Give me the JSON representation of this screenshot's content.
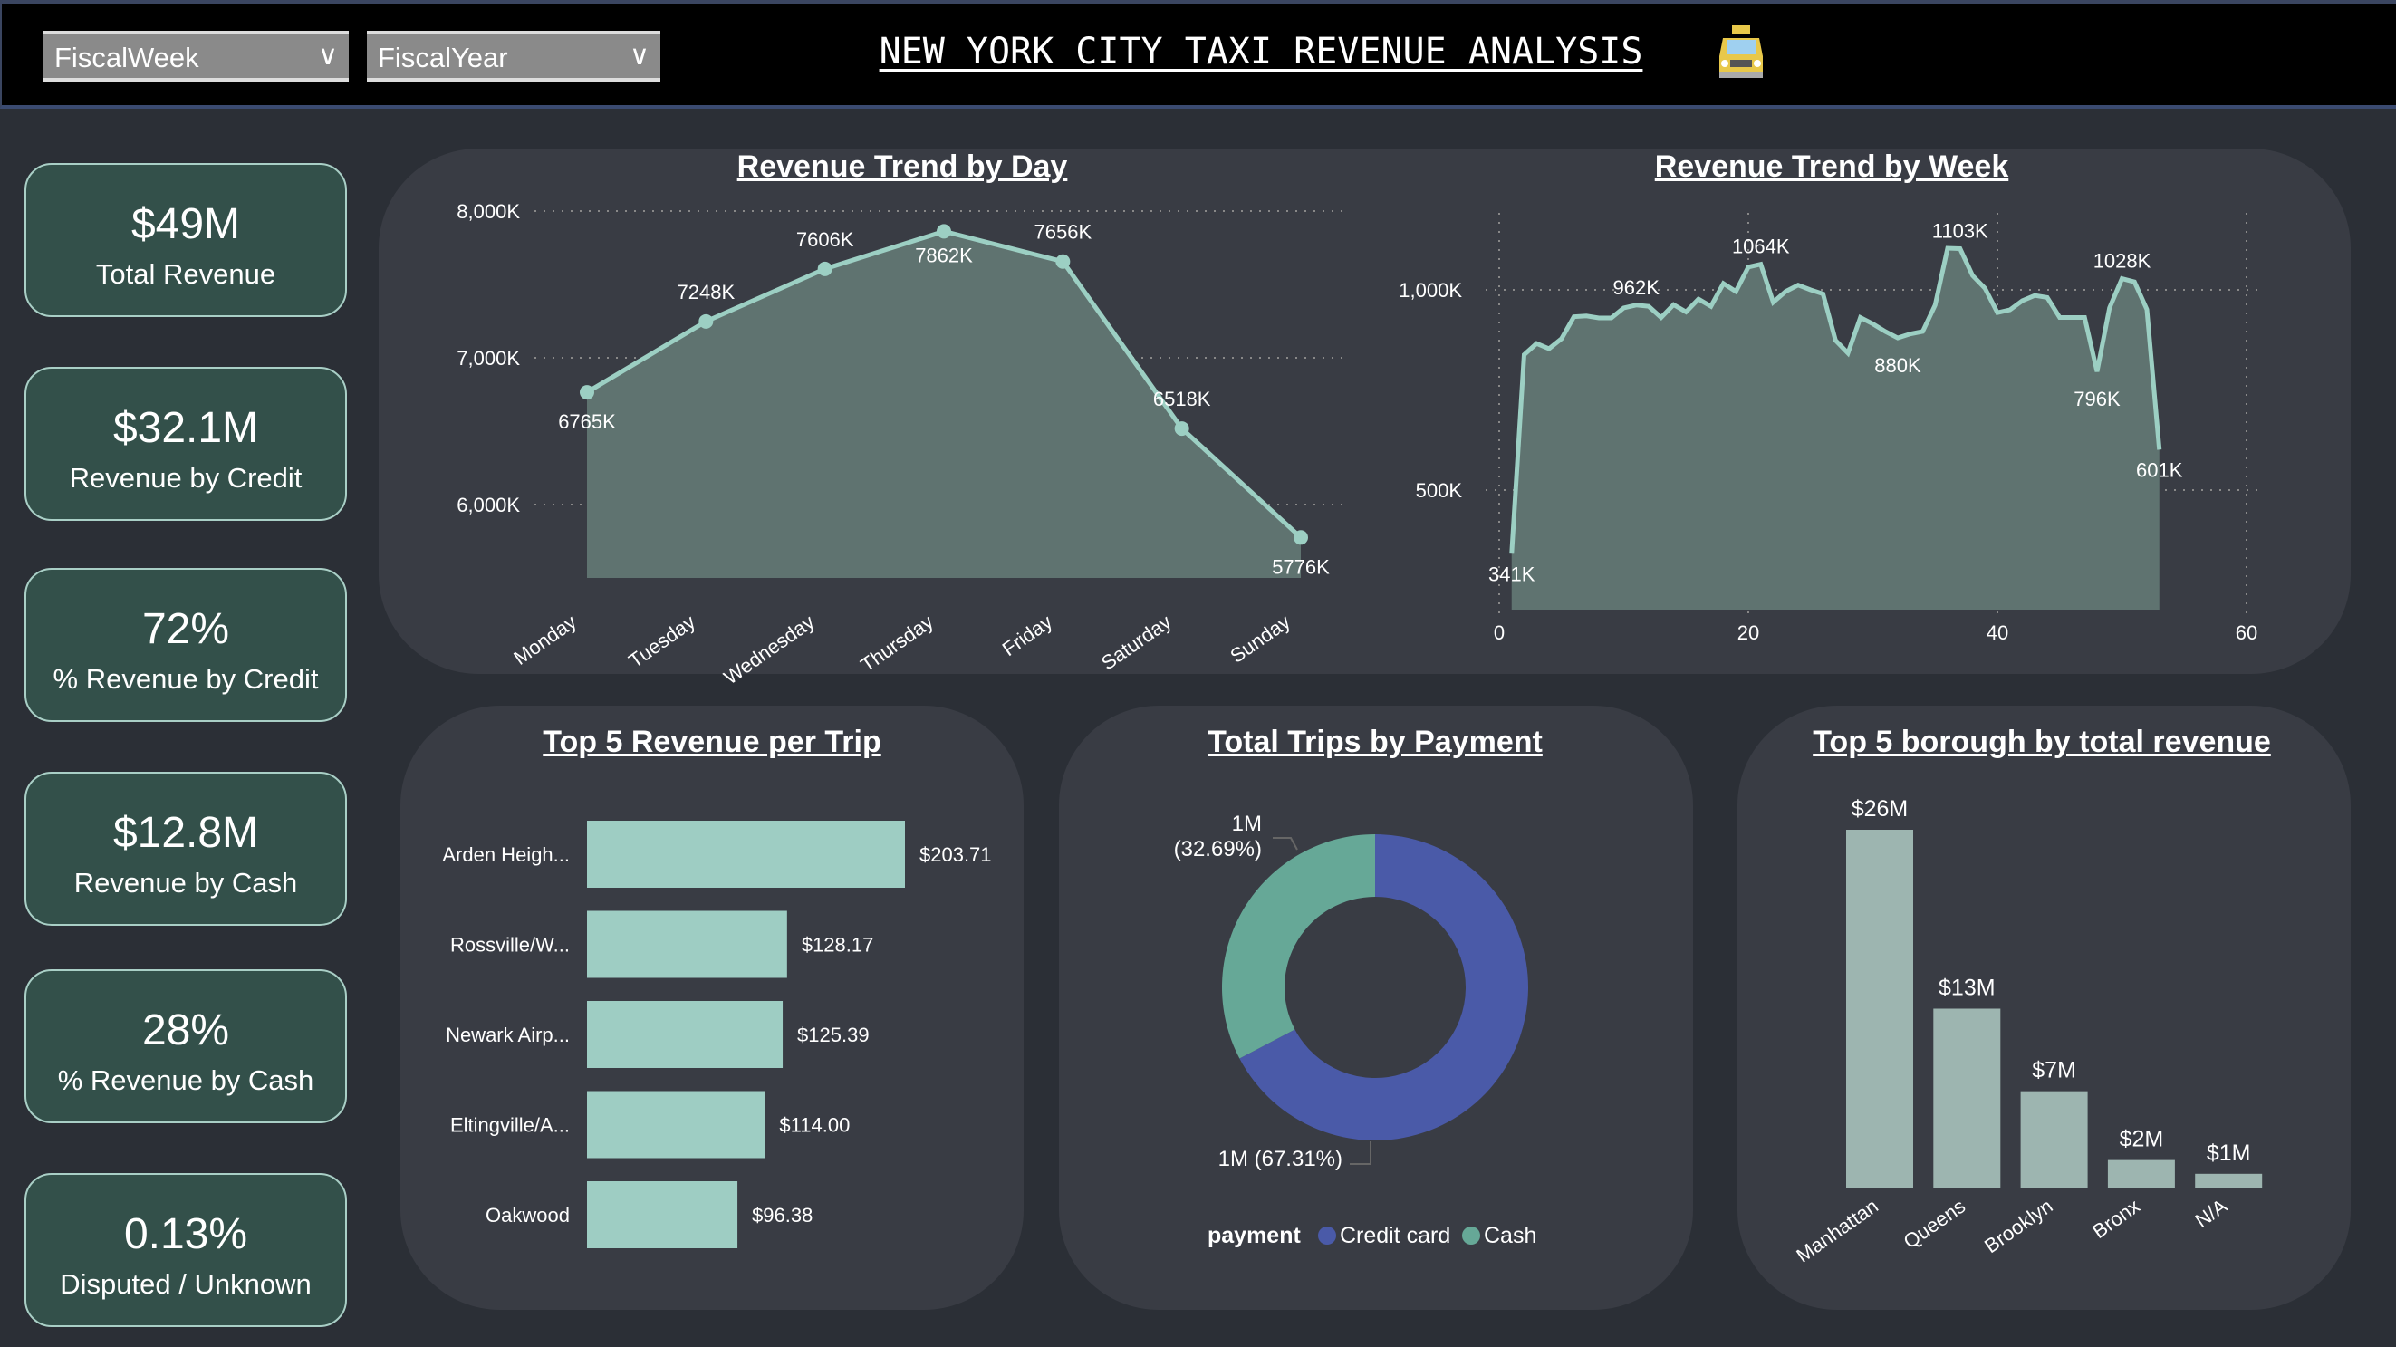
{
  "header": {
    "filters": [
      {
        "label": "FiscalWeek",
        "icon": "chevron-down-icon"
      },
      {
        "label": "FiscalYear",
        "icon": "chevron-down-icon"
      }
    ],
    "title": "NEW YORK CITY TAXI REVENUE ANALYSIS",
    "logo_text": "TAXI"
  },
  "kpis": [
    {
      "value": "$49M",
      "label": "Total Revenue"
    },
    {
      "value": "$32.1M",
      "label": "Revenue by Credit"
    },
    {
      "value": "72%",
      "label": "% Revenue by Credit"
    },
    {
      "value": "$12.8M",
      "label": "Revenue by Cash"
    },
    {
      "value": "28%",
      "label": "% Revenue by Cash"
    },
    {
      "value": "0.13%",
      "label": "Disputed / Unknown"
    }
  ],
  "colors": {
    "line": "#9ccfc3",
    "area": "#5f7370",
    "credit": "#4a5aa8",
    "cash": "#66a897",
    "bar": "#9ecdc3",
    "borough_bar": "#9db5b0",
    "kpi_bg": "#33504a"
  },
  "chart_data": [
    {
      "type": "area",
      "title": "Revenue Trend by Day",
      "categories": [
        "Monday",
        "Tuesday",
        "Wednesday",
        "Thursday",
        "Friday",
        "Saturday",
        "Sunday"
      ],
      "values": [
        6765,
        7248,
        7606,
        7862,
        7656,
        6518,
        5776
      ],
      "data_labels": [
        "6765K",
        "7248K",
        "7606K",
        "7862K",
        "7656K",
        "6518K",
        "5776K"
      ],
      "yticks": [
        "6,000K",
        "7,000K",
        "8,000K"
      ],
      "ytick_values": [
        6000,
        7000,
        8000
      ],
      "ylim": [
        5500,
        8000
      ],
      "unit": "K",
      "grid": true
    },
    {
      "type": "area",
      "title": "Revenue Trend by Week",
      "x": [
        1,
        2,
        3,
        4,
        5,
        6,
        7,
        8,
        9,
        10,
        11,
        12,
        13,
        14,
        15,
        16,
        17,
        18,
        19,
        20,
        21,
        22,
        23,
        24,
        25,
        26,
        27,
        28,
        29,
        30,
        31,
        32,
        33,
        34,
        35,
        36,
        37,
        38,
        39,
        40,
        41,
        42,
        43,
        44,
        45,
        46,
        47,
        48,
        49,
        50,
        51,
        52,
        53
      ],
      "values": [
        341,
        838,
        866,
        853,
        878,
        933,
        935,
        930,
        930,
        955,
        962,
        959,
        931,
        963,
        945,
        977,
        959,
        1016,
        996,
        1057,
        1064,
        969,
        996,
        1012,
        1000,
        990,
        874,
        842,
        931,
        915,
        896,
        880,
        890,
        896,
        962,
        1104,
        1103,
        1036,
        1004,
        943,
        950,
        973,
        986,
        981,
        931,
        931,
        931,
        796,
        955,
        1028,
        1020,
        951,
        601
      ],
      "data_labels": [
        {
          "x": 1,
          "text": "341K"
        },
        {
          "x": 11,
          "text": "962K"
        },
        {
          "x": 21,
          "text": "1064K"
        },
        {
          "x": 32,
          "text": "880K"
        },
        {
          "x": 37,
          "text": "1103K"
        },
        {
          "x": 48,
          "text": "796K"
        },
        {
          "x": 50,
          "text": "1028K"
        },
        {
          "x": 53,
          "text": "601K"
        }
      ],
      "xticks": [
        "0",
        "20",
        "40",
        "60"
      ],
      "xtick_values": [
        0,
        20,
        40,
        60
      ],
      "xlim": [
        0,
        60
      ],
      "yticks": [
        "500K",
        "1,000K"
      ],
      "ytick_values": [
        500,
        1000
      ],
      "ylim": [
        200,
        1150
      ],
      "grid": true
    },
    {
      "type": "bar",
      "orientation": "horizontal",
      "title": "Top 5 Revenue per Trip",
      "categories": [
        "Arden Heigh...",
        "Rossville/W...",
        "Newark Airp...",
        "Eltingville/A...",
        "Oakwood"
      ],
      "values": [
        203.71,
        128.17,
        125.39,
        114.0,
        96.38
      ],
      "data_labels": [
        "$203.71",
        "$128.17",
        "$125.39",
        "$114.00",
        "$96.38"
      ]
    },
    {
      "type": "pie",
      "donut": true,
      "title": "Total Trips by Payment",
      "legend_title": "payment",
      "legend": "bottom",
      "slices": [
        {
          "name": "Credit card",
          "percent": 67.31,
          "label": "1M (67.31%)"
        },
        {
          "name": "Cash",
          "percent": 32.69,
          "label_value": "1M",
          "label_pct": "(32.69%)"
        }
      ]
    },
    {
      "type": "bar",
      "title": "Top 5 borough by total revenue",
      "categories": [
        "Manhattan",
        "Queens",
        "Brooklyn",
        "Bronx",
        "N/A"
      ],
      "values": [
        26,
        13,
        7,
        2,
        1
      ],
      "unit": "M",
      "data_labels": [
        "$26M",
        "$13M",
        "$7M",
        "$2M",
        "$1M"
      ]
    }
  ]
}
